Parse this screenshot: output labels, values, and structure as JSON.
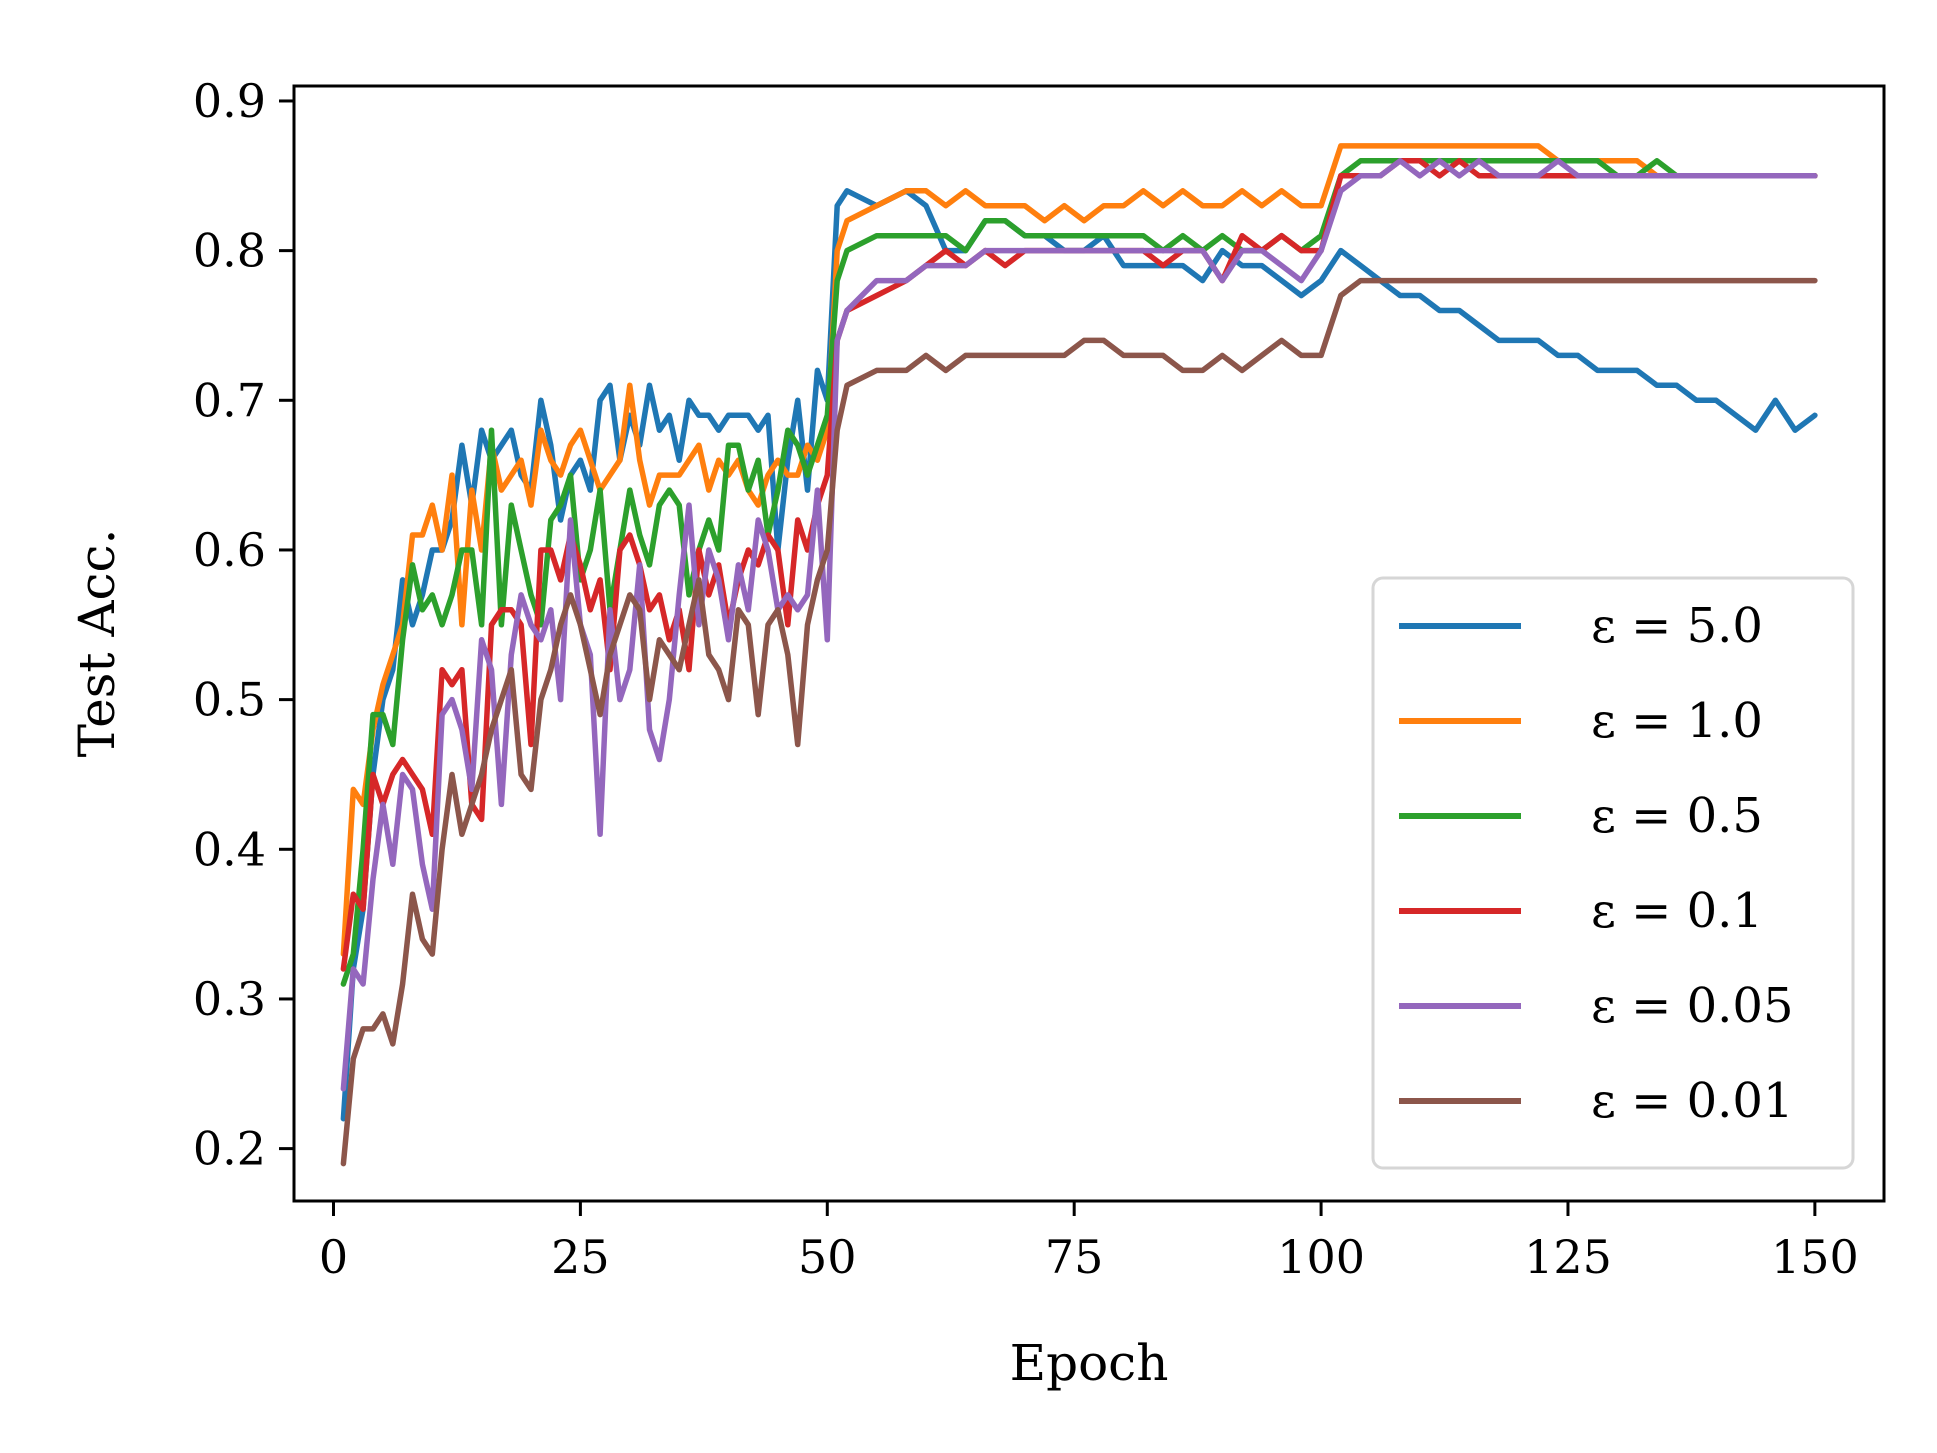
{
  "chart_data": {
    "type": "line",
    "title": "",
    "xlabel": "Epoch",
    "ylabel": "Test Acc.",
    "xlim": [
      -4,
      157
    ],
    "ylim": [
      0.165,
      0.91
    ],
    "xticks": [
      0,
      25,
      50,
      75,
      100,
      125,
      150
    ],
    "xtick_labels": [
      "0",
      "25",
      "50",
      "75",
      "100",
      "125",
      "150"
    ],
    "yticks": [
      0.2,
      0.3,
      0.4,
      0.5,
      0.6,
      0.7,
      0.8,
      0.9
    ],
    "ytick_labels": [
      "0.2",
      "0.3",
      "0.4",
      "0.5",
      "0.6",
      "0.7",
      "0.8",
      "0.9"
    ],
    "grid": false,
    "legend_position": "lower-right",
    "series": [
      {
        "name": "ε = 5.0",
        "color": "#1f77b4",
        "x": [
          1,
          2,
          3,
          4,
          5,
          6,
          7,
          8,
          9,
          10,
          11,
          12,
          13,
          14,
          15,
          16,
          17,
          18,
          19,
          20,
          21,
          22,
          23,
          24,
          25,
          26,
          27,
          28,
          29,
          30,
          31,
          32,
          33,
          34,
          35,
          36,
          37,
          38,
          39,
          40,
          41,
          42,
          43,
          44,
          45,
          46,
          47,
          48,
          49,
          50,
          51,
          52,
          55,
          58,
          60,
          62,
          64,
          66,
          68,
          70,
          72,
          74,
          76,
          78,
          80,
          82,
          84,
          86,
          88,
          90,
          92,
          94,
          96,
          98,
          100,
          102,
          104,
          106,
          108,
          110,
          112,
          114,
          116,
          118,
          120,
          122,
          124,
          126,
          128,
          130,
          132,
          134,
          136,
          138,
          140,
          142,
          144,
          146,
          148,
          150
        ],
        "y": [
          0.22,
          0.32,
          0.36,
          0.45,
          0.5,
          0.52,
          0.58,
          0.55,
          0.57,
          0.6,
          0.6,
          0.62,
          0.67,
          0.63,
          0.68,
          0.66,
          0.67,
          0.68,
          0.65,
          0.64,
          0.7,
          0.67,
          0.62,
          0.65,
          0.66,
          0.64,
          0.7,
          0.71,
          0.66,
          0.69,
          0.67,
          0.71,
          0.68,
          0.69,
          0.66,
          0.7,
          0.69,
          0.69,
          0.68,
          0.69,
          0.69,
          0.69,
          0.68,
          0.69,
          0.6,
          0.66,
          0.7,
          0.64,
          0.72,
          0.7,
          0.83,
          0.84,
          0.83,
          0.84,
          0.83,
          0.8,
          0.8,
          0.82,
          0.82,
          0.81,
          0.81,
          0.8,
          0.8,
          0.81,
          0.79,
          0.79,
          0.79,
          0.79,
          0.78,
          0.8,
          0.79,
          0.79,
          0.78,
          0.77,
          0.78,
          0.8,
          0.79,
          0.78,
          0.77,
          0.77,
          0.76,
          0.76,
          0.75,
          0.74,
          0.74,
          0.74,
          0.73,
          0.73,
          0.72,
          0.72,
          0.72,
          0.71,
          0.71,
          0.7,
          0.7,
          0.69,
          0.68,
          0.7,
          0.68,
          0.69
        ]
      },
      {
        "name": "ε = 1.0",
        "color": "#ff7f0e",
        "x": [
          1,
          2,
          3,
          4,
          5,
          6,
          7,
          8,
          9,
          10,
          11,
          12,
          13,
          14,
          15,
          16,
          17,
          18,
          19,
          20,
          21,
          22,
          23,
          24,
          25,
          26,
          27,
          28,
          29,
          30,
          31,
          32,
          33,
          34,
          35,
          36,
          37,
          38,
          39,
          40,
          41,
          42,
          43,
          44,
          45,
          46,
          47,
          48,
          49,
          50,
          51,
          52,
          55,
          58,
          60,
          62,
          64,
          66,
          68,
          70,
          72,
          74,
          76,
          78,
          80,
          82,
          84,
          86,
          88,
          90,
          92,
          94,
          96,
          98,
          100,
          102,
          104,
          106,
          108,
          110,
          112,
          114,
          116,
          118,
          120,
          122,
          124,
          126,
          128,
          130,
          132,
          134,
          136,
          138,
          140,
          142,
          144,
          146,
          148,
          150
        ],
        "y": [
          0.33,
          0.44,
          0.43,
          0.48,
          0.51,
          0.53,
          0.55,
          0.61,
          0.61,
          0.63,
          0.6,
          0.65,
          0.55,
          0.64,
          0.6,
          0.67,
          0.64,
          0.65,
          0.66,
          0.63,
          0.68,
          0.66,
          0.65,
          0.67,
          0.68,
          0.66,
          0.64,
          0.65,
          0.66,
          0.71,
          0.66,
          0.63,
          0.65,
          0.65,
          0.65,
          0.66,
          0.67,
          0.64,
          0.66,
          0.65,
          0.66,
          0.64,
          0.63,
          0.65,
          0.66,
          0.65,
          0.65,
          0.67,
          0.66,
          0.68,
          0.8,
          0.82,
          0.83,
          0.84,
          0.84,
          0.83,
          0.84,
          0.83,
          0.83,
          0.83,
          0.82,
          0.83,
          0.82,
          0.83,
          0.83,
          0.84,
          0.83,
          0.84,
          0.83,
          0.83,
          0.84,
          0.83,
          0.84,
          0.83,
          0.83,
          0.87,
          0.87,
          0.87,
          0.87,
          0.87,
          0.87,
          0.87,
          0.87,
          0.87,
          0.87,
          0.87,
          0.86,
          0.86,
          0.86,
          0.86,
          0.86,
          0.85,
          0.85,
          0.85,
          0.85,
          0.85,
          0.85,
          0.85,
          0.85,
          0.85
        ]
      },
      {
        "name": "ε = 0.5",
        "color": "#2ca02c",
        "x": [
          1,
          2,
          3,
          4,
          5,
          6,
          7,
          8,
          9,
          10,
          11,
          12,
          13,
          14,
          15,
          16,
          17,
          18,
          19,
          20,
          21,
          22,
          23,
          24,
          25,
          26,
          27,
          28,
          29,
          30,
          31,
          32,
          33,
          34,
          35,
          36,
          37,
          38,
          39,
          40,
          41,
          42,
          43,
          44,
          45,
          46,
          47,
          48,
          49,
          50,
          51,
          52,
          55,
          58,
          60,
          62,
          64,
          66,
          68,
          70,
          72,
          74,
          76,
          78,
          80,
          82,
          84,
          86,
          88,
          90,
          92,
          94,
          96,
          98,
          100,
          102,
          104,
          106,
          108,
          110,
          112,
          114,
          116,
          118,
          120,
          122,
          124,
          126,
          128,
          130,
          132,
          134,
          136,
          138,
          140,
          142,
          144,
          146,
          148,
          150
        ],
        "y": [
          0.31,
          0.33,
          0.4,
          0.49,
          0.49,
          0.47,
          0.54,
          0.59,
          0.56,
          0.57,
          0.55,
          0.57,
          0.6,
          0.6,
          0.55,
          0.68,
          0.55,
          0.63,
          0.6,
          0.57,
          0.55,
          0.62,
          0.63,
          0.65,
          0.58,
          0.6,
          0.64,
          0.56,
          0.6,
          0.64,
          0.61,
          0.59,
          0.63,
          0.64,
          0.63,
          0.57,
          0.6,
          0.62,
          0.6,
          0.67,
          0.67,
          0.64,
          0.66,
          0.61,
          0.64,
          0.68,
          0.67,
          0.65,
          0.67,
          0.69,
          0.78,
          0.8,
          0.81,
          0.81,
          0.81,
          0.81,
          0.8,
          0.82,
          0.82,
          0.81,
          0.81,
          0.81,
          0.81,
          0.81,
          0.81,
          0.81,
          0.8,
          0.81,
          0.8,
          0.81,
          0.8,
          0.8,
          0.81,
          0.8,
          0.81,
          0.85,
          0.86,
          0.86,
          0.86,
          0.86,
          0.86,
          0.86,
          0.86,
          0.86,
          0.86,
          0.86,
          0.86,
          0.86,
          0.86,
          0.85,
          0.85,
          0.86,
          0.85,
          0.85,
          0.85,
          0.85,
          0.85,
          0.85,
          0.85,
          0.85
        ]
      },
      {
        "name": "ε = 0.1",
        "color": "#d62728",
        "x": [
          1,
          2,
          3,
          4,
          5,
          6,
          7,
          8,
          9,
          10,
          11,
          12,
          13,
          14,
          15,
          16,
          17,
          18,
          19,
          20,
          21,
          22,
          23,
          24,
          25,
          26,
          27,
          28,
          29,
          30,
          31,
          32,
          33,
          34,
          35,
          36,
          37,
          38,
          39,
          40,
          41,
          42,
          43,
          44,
          45,
          46,
          47,
          48,
          49,
          50,
          51,
          52,
          55,
          58,
          60,
          62,
          64,
          66,
          68,
          70,
          72,
          74,
          76,
          78,
          80,
          82,
          84,
          86,
          88,
          90,
          92,
          94,
          96,
          98,
          100,
          102,
          104,
          106,
          108,
          110,
          112,
          114,
          116,
          118,
          120,
          122,
          124,
          126,
          128,
          130,
          132,
          134,
          136,
          138,
          140,
          142,
          144,
          146,
          148,
          150
        ],
        "y": [
          0.32,
          0.37,
          0.36,
          0.45,
          0.43,
          0.45,
          0.46,
          0.45,
          0.44,
          0.41,
          0.52,
          0.51,
          0.52,
          0.43,
          0.42,
          0.55,
          0.56,
          0.56,
          0.55,
          0.47,
          0.6,
          0.6,
          0.58,
          0.61,
          0.59,
          0.56,
          0.58,
          0.52,
          0.6,
          0.61,
          0.59,
          0.56,
          0.57,
          0.54,
          0.56,
          0.52,
          0.6,
          0.57,
          0.59,
          0.55,
          0.58,
          0.6,
          0.59,
          0.61,
          0.6,
          0.55,
          0.62,
          0.6,
          0.63,
          0.65,
          0.74,
          0.76,
          0.77,
          0.78,
          0.79,
          0.8,
          0.79,
          0.8,
          0.79,
          0.8,
          0.8,
          0.8,
          0.8,
          0.8,
          0.8,
          0.8,
          0.79,
          0.8,
          0.8,
          0.78,
          0.81,
          0.8,
          0.81,
          0.8,
          0.8,
          0.85,
          0.85,
          0.85,
          0.86,
          0.86,
          0.85,
          0.86,
          0.85,
          0.85,
          0.85,
          0.85,
          0.85,
          0.85,
          0.85,
          0.85,
          0.85,
          0.85,
          0.85,
          0.85,
          0.85,
          0.85,
          0.85,
          0.85,
          0.85,
          0.85
        ]
      },
      {
        "name": "ε = 0.05",
        "color": "#9467bd",
        "x": [
          1,
          2,
          3,
          4,
          5,
          6,
          7,
          8,
          9,
          10,
          11,
          12,
          13,
          14,
          15,
          16,
          17,
          18,
          19,
          20,
          21,
          22,
          23,
          24,
          25,
          26,
          27,
          28,
          29,
          30,
          31,
          32,
          33,
          34,
          35,
          36,
          37,
          38,
          39,
          40,
          41,
          42,
          43,
          44,
          45,
          46,
          47,
          48,
          49,
          50,
          51,
          52,
          55,
          58,
          60,
          62,
          64,
          66,
          68,
          70,
          72,
          74,
          76,
          78,
          80,
          82,
          84,
          86,
          88,
          90,
          92,
          94,
          96,
          98,
          100,
          102,
          104,
          106,
          108,
          110,
          112,
          114,
          116,
          118,
          120,
          122,
          124,
          126,
          128,
          130,
          132,
          134,
          136,
          138,
          140,
          142,
          144,
          146,
          148,
          150
        ],
        "y": [
          0.24,
          0.32,
          0.31,
          0.38,
          0.43,
          0.39,
          0.45,
          0.44,
          0.39,
          0.36,
          0.49,
          0.5,
          0.48,
          0.44,
          0.54,
          0.52,
          0.43,
          0.53,
          0.57,
          0.55,
          0.54,
          0.56,
          0.5,
          0.62,
          0.55,
          0.53,
          0.41,
          0.56,
          0.5,
          0.52,
          0.59,
          0.48,
          0.46,
          0.5,
          0.57,
          0.63,
          0.55,
          0.6,
          0.58,
          0.54,
          0.59,
          0.56,
          0.62,
          0.6,
          0.56,
          0.57,
          0.56,
          0.57,
          0.64,
          0.54,
          0.74,
          0.76,
          0.78,
          0.78,
          0.79,
          0.79,
          0.79,
          0.8,
          0.8,
          0.8,
          0.8,
          0.8,
          0.8,
          0.8,
          0.8,
          0.8,
          0.8,
          0.8,
          0.8,
          0.78,
          0.8,
          0.8,
          0.79,
          0.78,
          0.8,
          0.84,
          0.85,
          0.85,
          0.86,
          0.85,
          0.86,
          0.85,
          0.86,
          0.85,
          0.85,
          0.85,
          0.86,
          0.85,
          0.85,
          0.85,
          0.85,
          0.85,
          0.85,
          0.85,
          0.85,
          0.85,
          0.85,
          0.85,
          0.85,
          0.85
        ]
      },
      {
        "name": "ε = 0.01",
        "color": "#8c564b",
        "x": [
          1,
          2,
          3,
          4,
          5,
          6,
          7,
          8,
          9,
          10,
          11,
          12,
          13,
          14,
          15,
          16,
          17,
          18,
          19,
          20,
          21,
          22,
          23,
          24,
          25,
          26,
          27,
          28,
          29,
          30,
          31,
          32,
          33,
          34,
          35,
          36,
          37,
          38,
          39,
          40,
          41,
          42,
          43,
          44,
          45,
          46,
          47,
          48,
          49,
          50,
          51,
          52,
          55,
          58,
          60,
          62,
          64,
          66,
          68,
          70,
          72,
          74,
          76,
          78,
          80,
          82,
          84,
          86,
          88,
          90,
          92,
          94,
          96,
          98,
          100,
          102,
          104,
          106,
          108,
          110,
          112,
          114,
          116,
          118,
          120,
          122,
          124,
          126,
          128,
          130,
          132,
          134,
          136,
          138,
          140,
          142,
          144,
          146,
          148,
          150
        ],
        "y": [
          0.19,
          0.26,
          0.28,
          0.28,
          0.29,
          0.27,
          0.31,
          0.37,
          0.34,
          0.33,
          0.4,
          0.45,
          0.41,
          0.43,
          0.45,
          0.48,
          0.5,
          0.52,
          0.45,
          0.44,
          0.5,
          0.52,
          0.55,
          0.57,
          0.55,
          0.52,
          0.49,
          0.53,
          0.55,
          0.57,
          0.56,
          0.5,
          0.54,
          0.53,
          0.52,
          0.55,
          0.58,
          0.53,
          0.52,
          0.5,
          0.56,
          0.55,
          0.49,
          0.55,
          0.56,
          0.53,
          0.47,
          0.55,
          0.58,
          0.6,
          0.68,
          0.71,
          0.72,
          0.72,
          0.73,
          0.72,
          0.73,
          0.73,
          0.73,
          0.73,
          0.73,
          0.73,
          0.74,
          0.74,
          0.73,
          0.73,
          0.73,
          0.72,
          0.72,
          0.73,
          0.72,
          0.73,
          0.74,
          0.73,
          0.73,
          0.77,
          0.78,
          0.78,
          0.78,
          0.78,
          0.78,
          0.78,
          0.78,
          0.78,
          0.78,
          0.78,
          0.78,
          0.78,
          0.78,
          0.78,
          0.78,
          0.78,
          0.78,
          0.78,
          0.78,
          0.78,
          0.78,
          0.78,
          0.78,
          0.78
        ]
      }
    ]
  }
}
